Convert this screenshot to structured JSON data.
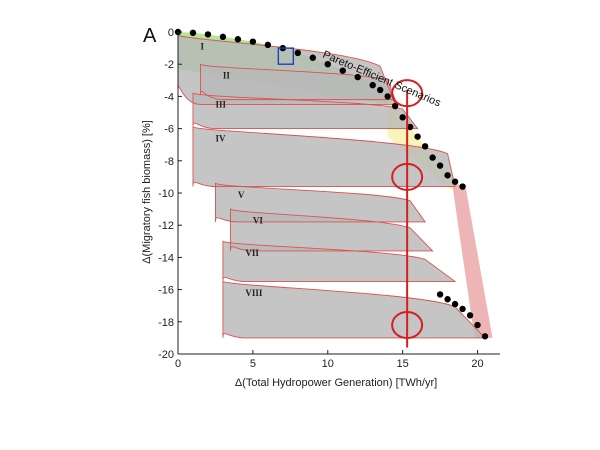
{
  "chart_data": {
    "type": "scatter",
    "panel_label": "A",
    "xlabel": "Δ(Total Hydropower Generation) [TWh/yr]",
    "ylabel": "Δ(Migratory fish biomass) [%]",
    "xlim": [
      0,
      21.5
    ],
    "ylim": [
      -20,
      0
    ],
    "x_ticks": [
      0,
      5,
      10,
      15,
      20
    ],
    "y_ticks": [
      0,
      -2,
      -4,
      -6,
      -8,
      -10,
      -12,
      -14,
      -16,
      -18,
      -20
    ],
    "grid": false,
    "annotation": "Pareto-Efficient Scenarios",
    "region_labels": [
      "I",
      "II",
      "III",
      "IV",
      "V",
      "VI",
      "VII",
      "VIII"
    ],
    "colors": {
      "frontier": "#000000",
      "cloud": "#b8b8b8",
      "region_outline": "#d9534f",
      "green_band": "#a6e08a",
      "yellow_band": "#f6f2a0",
      "pink_band": "#e9a3a3",
      "highlight": "#d42020",
      "box": "#1f3fbf"
    },
    "reference_line_x": 15.3,
    "highlight_ellipses": [
      {
        "x": 15.3,
        "y": -3.8
      },
      {
        "x": 15.3,
        "y": -9.0
      },
      {
        "x": 15.3,
        "y": -18.2
      }
    ],
    "blue_box": {
      "x": [
        6.7,
        7.7
      ],
      "y": [
        -1.0,
        -2.0
      ]
    },
    "pareto_front_upper": {
      "x": [
        0,
        1,
        2,
        3,
        4,
        5,
        6,
        7,
        8,
        9,
        10,
        11,
        12,
        13,
        13.5,
        14,
        14.5,
        15,
        15.5,
        16,
        16.5,
        17,
        17.5,
        18,
        18.5,
        19
      ],
      "y": [
        0,
        -0.05,
        -0.15,
        -0.3,
        -0.45,
        -0.6,
        -0.8,
        -1.0,
        -1.3,
        -1.6,
        -2.0,
        -2.4,
        -2.8,
        -3.3,
        -3.6,
        -4.0,
        -4.6,
        -5.3,
        -5.9,
        -6.5,
        -7.1,
        -7.8,
        -8.3,
        -8.9,
        -9.3,
        -9.6
      ]
    },
    "pareto_front_lower": {
      "x": [
        17.5,
        18,
        18.5,
        19,
        19.5,
        20,
        20.5
      ],
      "y": [
        -16.3,
        -16.6,
        -16.9,
        -17.2,
        -17.6,
        -18.2,
        -18.9
      ]
    },
    "regions": [
      {
        "label": "I",
        "top_left": [
          0,
          -0.2
        ],
        "bottom_left": [
          0,
          -3.5
        ],
        "top_right_x": 13.5,
        "bottom_right_x": 14.5,
        "bottom_y": -4.5
      },
      {
        "label": "II",
        "top_left": [
          1.5,
          -2.0
        ],
        "bottom_left": [
          1.5,
          -3.9
        ],
        "top_right_x": 14,
        "bottom_right_x": 14.5,
        "bottom_y": -4.2
      },
      {
        "label": "III",
        "top_left": [
          1.0,
          -3.8
        ],
        "bottom_left": [
          1.0,
          -5.9
        ],
        "top_right_x": 15,
        "bottom_right_x": 16,
        "bottom_y": -6.0
      },
      {
        "label": "IV",
        "top_left": [
          1.0,
          -5.9
        ],
        "bottom_left": [
          1.0,
          -9.6
        ],
        "top_right_x": 18,
        "bottom_right_x": 18.5,
        "bottom_y": -9.6
      },
      {
        "label": "V",
        "top_left": [
          2.5,
          -9.4
        ],
        "bottom_left": [
          2.5,
          -11.8
        ],
        "top_right_x": 15.5,
        "bottom_right_x": 16.5,
        "bottom_y": -11.8
      },
      {
        "label": "VI",
        "top_left": [
          3.5,
          -11.0
        ],
        "bottom_left": [
          3.5,
          -13.6
        ],
        "top_right_x": 15.5,
        "bottom_right_x": 17.0,
        "bottom_y": -13.6
      },
      {
        "label": "VII",
        "top_left": [
          3.0,
          -13.0
        ],
        "bottom_left": [
          3.0,
          -15.5
        ],
        "top_right_x": 16.5,
        "bottom_right_x": 18.5,
        "bottom_y": -15.5
      },
      {
        "label": "VIII",
        "top_left": [
          3.0,
          -15.5
        ],
        "bottom_left": [
          3.0,
          -19.0
        ],
        "top_right_x": 18.5,
        "bottom_right_x": 20.5,
        "bottom_y": -19.0
      }
    ]
  }
}
